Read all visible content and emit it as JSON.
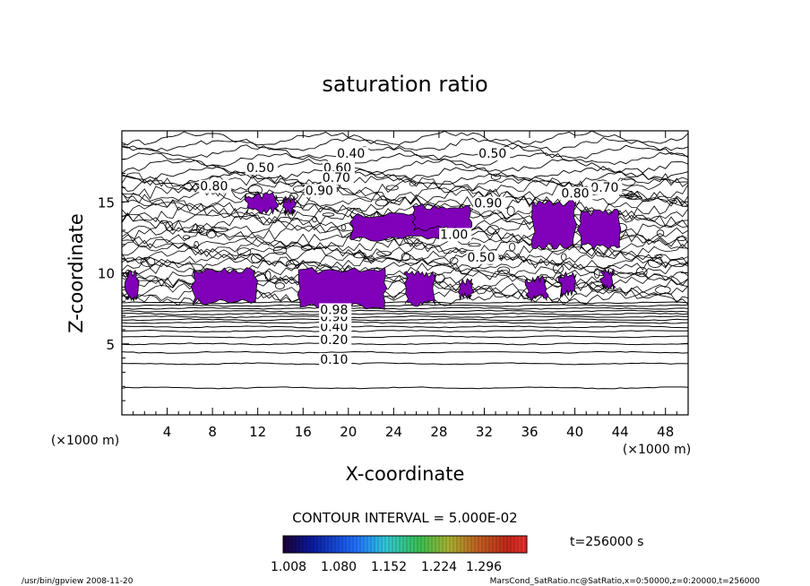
{
  "chart_data": {
    "type": "contour",
    "title": "saturation ratio",
    "xlabel": "X-coordinate",
    "ylabel": "Z-coordinate",
    "x_unit": "(×1000 m)",
    "y_unit": "(×1000 m)",
    "xlim": [
      0,
      50
    ],
    "ylim": [
      0,
      20
    ],
    "x_ticks": [
      4,
      8,
      12,
      16,
      20,
      24,
      28,
      32,
      36,
      40,
      44,
      48
    ],
    "y_ticks": [
      5,
      10,
      15
    ],
    "grid": false,
    "contour_interval_text": "CONTOUR INTERVAL = 5.000E-02",
    "contour_labels": [
      {
        "text": "0.10",
        "x": 17.5,
        "z": 3.6
      },
      {
        "text": "0.20",
        "x": 17.5,
        "z": 5.0
      },
      {
        "text": "0.40",
        "x": 17.5,
        "z": 5.9
      },
      {
        "text": "0.90",
        "x": 17.5,
        "z": 6.6
      },
      {
        "text": "0.98",
        "x": 17.5,
        "z": 7.1
      },
      {
        "text": "0.50",
        "x": 11.0,
        "z": 17.1
      },
      {
        "text": "0.60",
        "x": 17.8,
        "z": 17.1
      },
      {
        "text": "0.40",
        "x": 19.0,
        "z": 18.1
      },
      {
        "text": "0.70",
        "x": 17.7,
        "z": 16.4
      },
      {
        "text": "0.80",
        "x": 6.9,
        "z": 15.8
      },
      {
        "text": "0.90",
        "x": 16.2,
        "z": 15.5
      },
      {
        "text": "0.50",
        "x": 31.5,
        "z": 18.1
      },
      {
        "text": "0.70",
        "x": 41.4,
        "z": 15.7
      },
      {
        "text": "0.80",
        "x": 38.8,
        "z": 15.3
      },
      {
        "text": "0.90",
        "x": 31.1,
        "z": 14.6
      },
      {
        "text": "1.00",
        "x": 28.1,
        "z": 12.4
      },
      {
        "text": "0.50",
        "x": 30.5,
        "z": 10.8
      }
    ],
    "colorbar": {
      "ticks": [
        "1.008",
        "1.080",
        "1.152",
        "1.224",
        "1.296"
      ]
    },
    "time_label": "t=256000 s",
    "shaded_regions_color": "#7f00b8",
    "contour_line_color": "#000000",
    "footer_left": "/usr/bin/gpview   2008-11-20",
    "footer_right": "MarsCond_SatRatio.nc@SatRatio,x=0:50000,z=0:20000,t=256000"
  }
}
